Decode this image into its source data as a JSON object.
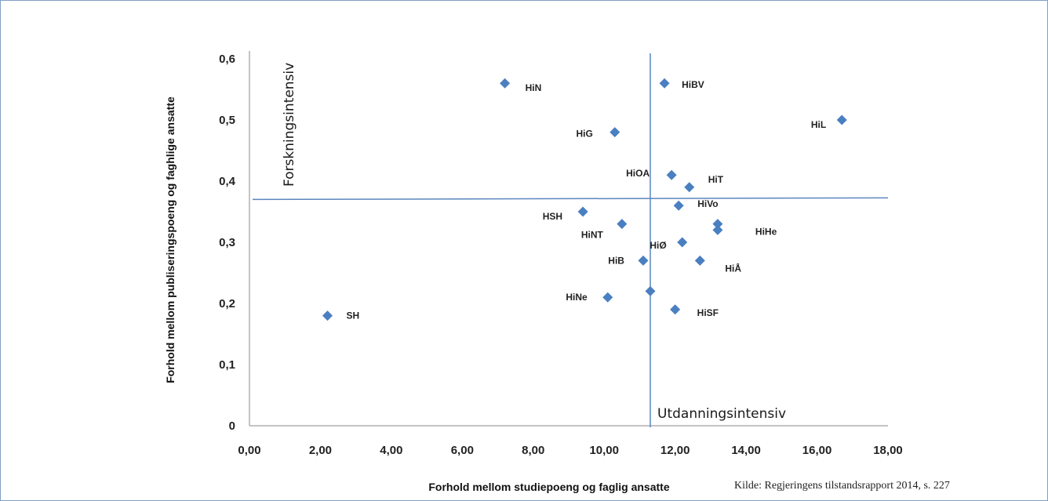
{
  "source_note": "Kilde: Regjeringens tilstandsrapport 2014, s. 227",
  "chart_data": {
    "type": "scatter",
    "xlabel": "Forhold mellom studiepoeng og faglig ansatte",
    "ylabel": "Forhold mellom publiseringspoeng og faghlige ansatte",
    "xlim": [
      0,
      18
    ],
    "ylim": [
      0,
      0.6
    ],
    "x_ticks": [
      "0,00",
      "2,00",
      "4,00",
      "6,00",
      "8,00",
      "10,00",
      "12,00",
      "14,00",
      "16,00",
      "18,00"
    ],
    "y_ticks": [
      "0",
      "0,1",
      "0,2",
      "0,3",
      "0,4",
      "0,5",
      "0,6"
    ],
    "grid": false,
    "marker_color": "#4a7fc1",
    "reference_lines": {
      "vertical_x": 11.3,
      "horizontal_y": 0.37
    },
    "quadrant_labels": [
      "Forskningsintensiv",
      "Utdanningsintensiv"
    ],
    "points": [
      {
        "label": "HiN",
        "x": 7.2,
        "y": 0.56
      },
      {
        "label": "HiBV",
        "x": 11.7,
        "y": 0.56
      },
      {
        "label": "HiL",
        "x": 16.7,
        "y": 0.5
      },
      {
        "label": "HiG",
        "x": 10.3,
        "y": 0.48
      },
      {
        "label": "HiOA",
        "x": 11.9,
        "y": 0.41
      },
      {
        "label": "HiT",
        "x": 12.4,
        "y": 0.39
      },
      {
        "label": "HiVo",
        "x": 12.1,
        "y": 0.36
      },
      {
        "label": "HSH",
        "x": 9.4,
        "y": 0.35
      },
      {
        "label": "HiNT",
        "x": 10.5,
        "y": 0.33
      },
      {
        "label": "",
        "x": 13.2,
        "y": 0.33
      },
      {
        "label": "HiHe",
        "x": 13.2,
        "y": 0.32
      },
      {
        "label": "HiØ",
        "x": 12.2,
        "y": 0.3
      },
      {
        "label": "HiB",
        "x": 11.1,
        "y": 0.27
      },
      {
        "label": "HiÅ",
        "x": 12.7,
        "y": 0.27
      },
      {
        "label": "",
        "x": 11.3,
        "y": 0.22
      },
      {
        "label": "HiNe",
        "x": 10.1,
        "y": 0.21
      },
      {
        "label": "HiSF",
        "x": 12.0,
        "y": 0.19
      },
      {
        "label": "SH",
        "x": 2.2,
        "y": 0.18
      }
    ]
  }
}
